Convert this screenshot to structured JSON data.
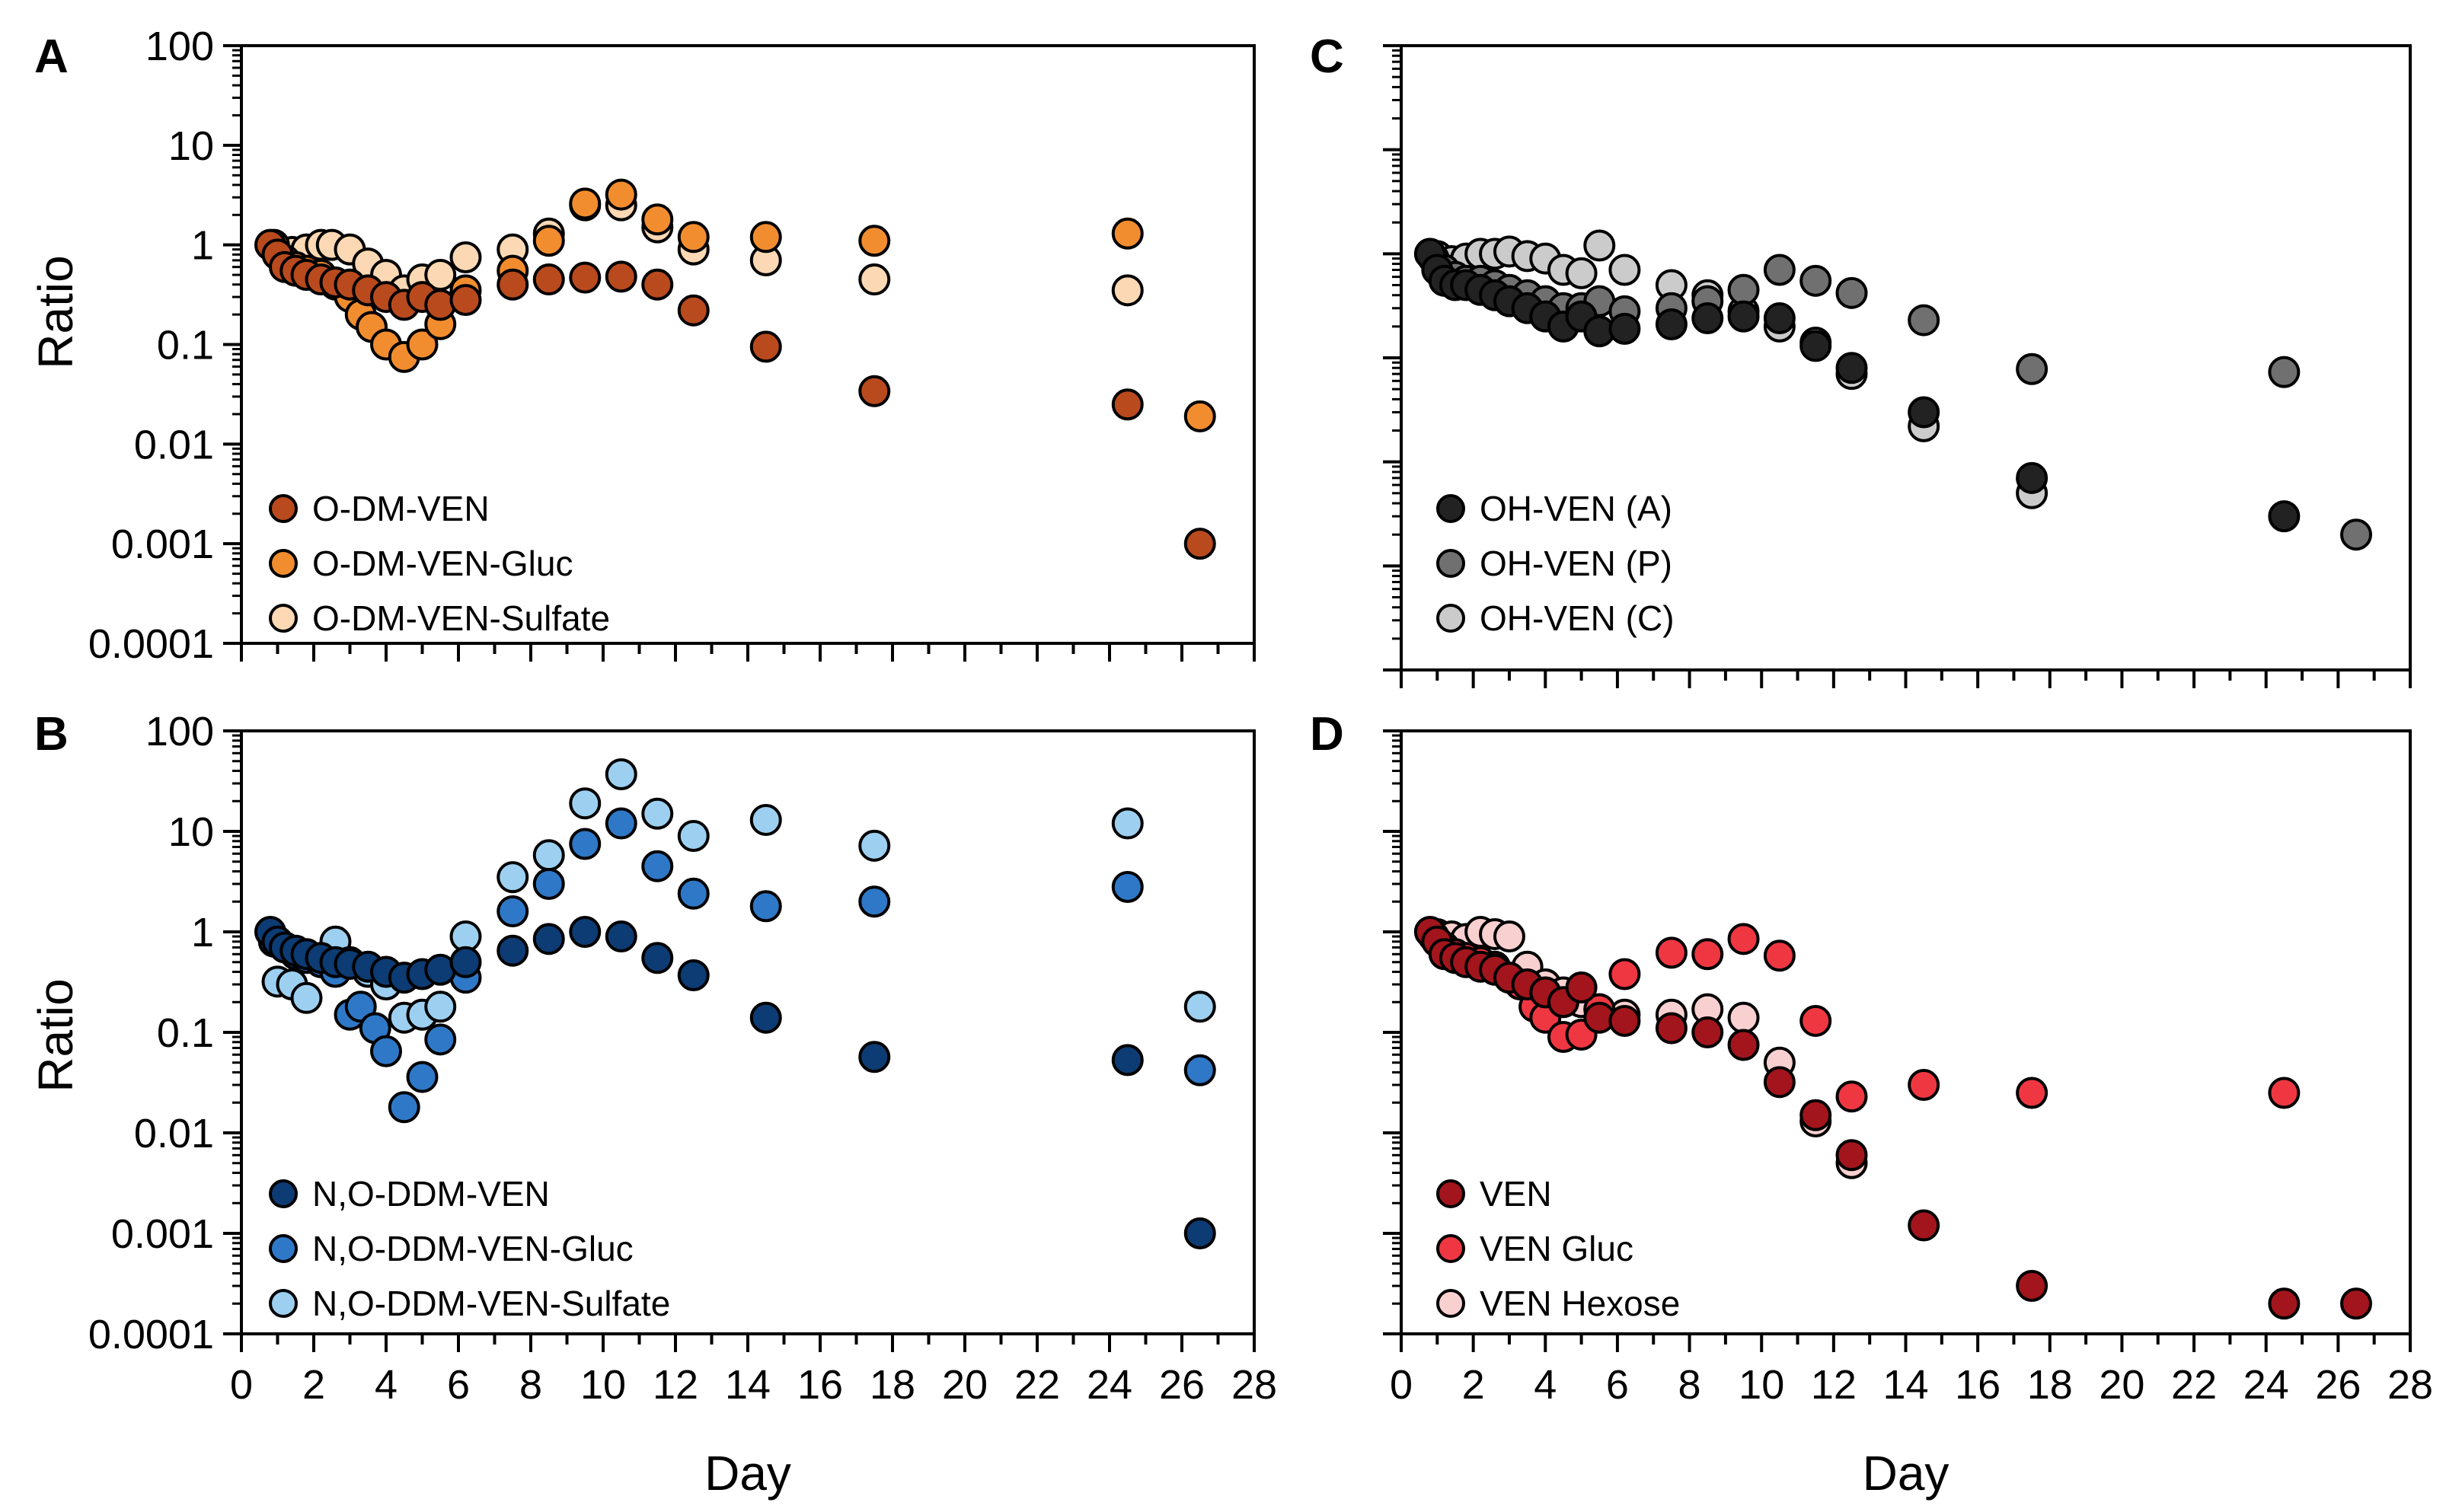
{
  "figure": {
    "x_axis_label": "Day",
    "y_axis_label": "Ratio"
  },
  "chart_data": [
    {
      "panel": "A",
      "type": "scatter",
      "yscale": "log",
      "xlim": [
        0,
        28
      ],
      "ylim": [
        0.0001,
        100
      ],
      "xticks": [
        "0",
        "2",
        "4",
        "6",
        "8",
        "10",
        "12",
        "14",
        "16",
        "18",
        "20",
        "22",
        "24",
        "26",
        "28"
      ],
      "yticks": [
        "0.0001",
        "0.001",
        "0.01",
        "0.1",
        "1",
        "10",
        "100"
      ],
      "xlabel": "",
      "ylabel": "Ratio",
      "series": [
        {
          "name": "O-DM-VEN",
          "color": "#B94A1E",
          "x": [
            0.8,
            1.0,
            1.2,
            1.5,
            1.8,
            2.2,
            2.6,
            3.0,
            3.5,
            4.0,
            4.5,
            5.0,
            5.5,
            6.2,
            7.5,
            8.5,
            9.5,
            10.5,
            11.5,
            12.5,
            14.5,
            17.5,
            24.5,
            26.5
          ],
          "y": [
            1.0,
            0.8,
            0.6,
            0.55,
            0.5,
            0.45,
            0.42,
            0.4,
            0.35,
            0.3,
            0.25,
            0.3,
            0.25,
            0.28,
            0.4,
            0.45,
            0.47,
            0.48,
            0.4,
            0.22,
            0.095,
            0.034,
            0.025,
            0.001
          ]
        },
        {
          "name": "O-DM-VEN-Gluc",
          "color": "#F28D2F",
          "x": [
            0.9,
            1.2,
            1.5,
            1.8,
            2.2,
            2.6,
            3.0,
            3.3,
            3.6,
            4.0,
            4.5,
            5.0,
            5.5,
            6.2,
            7.5,
            8.5,
            9.5,
            10.5,
            11.5,
            12.5,
            14.5,
            17.5,
            24.5,
            26.5
          ],
          "y": [
            1.0,
            0.7,
            0.6,
            0.55,
            0.5,
            0.4,
            0.3,
            0.2,
            0.15,
            0.1,
            0.075,
            0.1,
            0.16,
            0.35,
            0.55,
            1.1,
            2.6,
            3.2,
            1.8,
            1.2,
            1.2,
            1.1,
            1.3,
            0.019
          ]
        },
        {
          "name": "O-DM-VEN-Sulfate",
          "color": "#FCD8B4",
          "x": [
            1.0,
            1.4,
            1.8,
            2.2,
            2.5,
            3.0,
            3.5,
            4.0,
            4.5,
            5.0,
            5.5,
            6.2,
            7.5,
            8.5,
            9.5,
            10.5,
            11.5,
            12.5,
            14.5,
            17.5,
            24.5
          ],
          "y": [
            0.9,
            0.85,
            0.9,
            1.0,
            1.0,
            0.9,
            0.65,
            0.5,
            0.35,
            0.45,
            0.5,
            0.75,
            0.9,
            1.3,
            2.5,
            2.5,
            1.5,
            0.9,
            0.7,
            0.45,
            0.35
          ]
        }
      ]
    },
    {
      "panel": "B",
      "type": "scatter",
      "yscale": "log",
      "xlim": [
        0,
        28
      ],
      "ylim": [
        0.0001,
        100
      ],
      "xticks": [
        "0",
        "2",
        "4",
        "6",
        "8",
        "10",
        "12",
        "14",
        "16",
        "18",
        "20",
        "22",
        "24",
        "26",
        "28"
      ],
      "yticks": [
        "0.0001",
        "0.001",
        "0.01",
        "0.1",
        "1",
        "10",
        "100"
      ],
      "xlabel": "Day",
      "ylabel": "Ratio",
      "series": [
        {
          "name": "N,O-DDM-VEN",
          "color": "#0D3B73",
          "x": [
            0.8,
            1.0,
            1.2,
            1.5,
            1.8,
            2.2,
            2.6,
            3.0,
            3.5,
            4.0,
            4.5,
            5.0,
            5.5,
            6.2,
            7.5,
            8.5,
            9.5,
            10.5,
            11.5,
            12.5,
            14.5,
            17.5,
            24.5,
            26.5
          ],
          "y": [
            1.0,
            0.8,
            0.7,
            0.65,
            0.6,
            0.55,
            0.5,
            0.48,
            0.45,
            0.4,
            0.35,
            0.38,
            0.42,
            0.5,
            0.65,
            0.85,
            1.0,
            0.9,
            0.55,
            0.37,
            0.14,
            0.057,
            0.053,
            0.001
          ]
        },
        {
          "name": "N,O-DDM-VEN-Gluc",
          "color": "#2E78C7",
          "x": [
            0.9,
            1.2,
            1.5,
            1.8,
            2.2,
            2.6,
            3.0,
            3.3,
            3.7,
            4.0,
            4.5,
            5.0,
            5.5,
            6.2,
            7.5,
            8.5,
            9.5,
            10.5,
            11.5,
            12.5,
            14.5,
            17.5,
            24.5,
            26.5
          ],
          "y": [
            0.8,
            0.7,
            0.6,
            0.55,
            0.5,
            0.4,
            0.15,
            0.18,
            0.11,
            0.065,
            0.018,
            0.036,
            0.085,
            0.35,
            1.6,
            3.0,
            7.5,
            12,
            4.5,
            2.4,
            1.8,
            2.0,
            2.8,
            0.042
          ]
        },
        {
          "name": "N,O-DDM-VEN-Sulfate",
          "color": "#9DD0F0",
          "x": [
            1.0,
            1.4,
            1.8,
            2.2,
            2.6,
            3.0,
            3.5,
            4.0,
            4.5,
            5.0,
            5.5,
            6.2,
            7.5,
            8.5,
            9.5,
            10.5,
            11.5,
            12.5,
            14.5,
            17.5,
            24.5,
            26.5
          ],
          "y": [
            0.32,
            0.3,
            0.22,
            0.5,
            0.8,
            0.5,
            0.4,
            0.3,
            0.14,
            0.15,
            0.18,
            0.9,
            3.5,
            5.8,
            19,
            37,
            15,
            9,
            13,
            7.2,
            12,
            0.18
          ]
        }
      ]
    },
    {
      "panel": "C",
      "type": "scatter",
      "yscale": "log",
      "xlim": [
        0,
        28
      ],
      "ylim": [
        0.0001,
        100
      ],
      "xticks": [
        "0",
        "2",
        "4",
        "6",
        "8",
        "10",
        "12",
        "14",
        "16",
        "18",
        "20",
        "22",
        "24",
        "26",
        "28"
      ],
      "yticks": [],
      "xlabel": "",
      "ylabel": "",
      "series": [
        {
          "name": "OH-VEN (A)",
          "color": "#222222",
          "x": [
            0.8,
            1.0,
            1.2,
            1.5,
            1.8,
            2.2,
            2.6,
            3.0,
            3.5,
            4.0,
            4.5,
            5.0,
            5.5,
            6.2,
            7.5,
            8.5,
            9.5,
            10.5,
            11.5,
            12.5,
            14.5,
            17.5,
            24.5
          ],
          "y": [
            1.0,
            0.7,
            0.55,
            0.5,
            0.5,
            0.45,
            0.4,
            0.35,
            0.3,
            0.25,
            0.2,
            0.25,
            0.18,
            0.19,
            0.21,
            0.24,
            0.25,
            0.24,
            0.13,
            0.08,
            0.03,
            0.007,
            0.003
          ]
        },
        {
          "name": "OH-VEN (P)",
          "color": "#707070",
          "x": [
            0.9,
            1.2,
            1.5,
            1.8,
            2.2,
            2.6,
            3.0,
            3.5,
            4.0,
            4.5,
            5.0,
            5.5,
            6.2,
            7.5,
            8.5,
            9.5,
            10.5,
            11.5,
            12.5,
            14.5,
            17.5,
            24.5,
            26.5
          ],
          "y": [
            0.9,
            0.7,
            0.6,
            0.55,
            0.55,
            0.5,
            0.45,
            0.4,
            0.35,
            0.3,
            0.3,
            0.35,
            0.28,
            0.3,
            0.35,
            0.45,
            0.7,
            0.55,
            0.42,
            0.23,
            0.078,
            0.073,
            0.002
          ]
        },
        {
          "name": "OH-VEN (C)",
          "color": "#CBCBCB",
          "x": [
            1.0,
            1.4,
            1.8,
            2.2,
            2.6,
            3.0,
            3.5,
            4.0,
            4.5,
            5.0,
            5.5,
            6.2,
            7.5,
            8.5,
            9.5,
            10.5,
            11.5,
            12.5,
            14.5,
            17.5
          ],
          "y": [
            0.95,
            0.85,
            0.9,
            1.0,
            1.0,
            1.05,
            0.95,
            0.9,
            0.7,
            0.65,
            1.2,
            0.7,
            0.5,
            0.4,
            0.28,
            0.2,
            0.14,
            0.07,
            0.022,
            0.005
          ]
        }
      ]
    },
    {
      "panel": "D",
      "type": "scatter",
      "yscale": "log",
      "xlim": [
        0,
        28
      ],
      "ylim": [
        0.0001,
        100
      ],
      "xticks": [
        "0",
        "2",
        "4",
        "6",
        "8",
        "10",
        "12",
        "14",
        "16",
        "18",
        "20",
        "22",
        "24",
        "26",
        "28"
      ],
      "yticks": [],
      "xlabel": "Day",
      "ylabel": "",
      "series": [
        {
          "name": "VEN",
          "color": "#A3151C",
          "x": [
            0.8,
            1.0,
            1.2,
            1.5,
            1.8,
            2.2,
            2.6,
            3.0,
            3.5,
            4.0,
            4.5,
            5.0,
            5.5,
            6.2,
            7.5,
            8.5,
            9.5,
            10.5,
            11.5,
            12.5,
            14.5,
            17.5,
            24.5,
            26.5
          ],
          "y": [
            1.0,
            0.8,
            0.6,
            0.55,
            0.5,
            0.45,
            0.42,
            0.35,
            0.3,
            0.25,
            0.2,
            0.28,
            0.14,
            0.13,
            0.11,
            0.1,
            0.075,
            0.032,
            0.015,
            0.006,
            0.0012,
            0.0003,
            0.0002,
            0.0002
          ]
        },
        {
          "name": "VEN Gluc",
          "color": "#EF3742",
          "x": [
            0.9,
            1.2,
            1.5,
            1.8,
            2.2,
            2.6,
            3.0,
            3.3,
            3.7,
            4.0,
            4.5,
            5.0,
            5.5,
            6.2,
            7.5,
            8.5,
            9.5,
            10.5,
            11.5,
            12.5,
            14.5,
            17.5,
            24.5
          ],
          "y": [
            0.9,
            0.7,
            0.6,
            0.55,
            0.5,
            0.45,
            0.35,
            0.3,
            0.18,
            0.14,
            0.09,
            0.095,
            0.17,
            0.38,
            0.62,
            0.6,
            0.85,
            0.58,
            0.13,
            0.023,
            0.03,
            0.025,
            0.025
          ]
        },
        {
          "name": "VEN Hexose",
          "color": "#F9D0D0",
          "x": [
            1.0,
            1.4,
            1.8,
            2.2,
            2.6,
            3.0,
            3.5,
            4.0,
            4.5,
            5.0,
            5.5,
            6.2,
            7.5,
            8.5,
            9.5,
            10.5,
            11.5,
            12.5
          ],
          "y": [
            0.95,
            0.9,
            0.85,
            1.0,
            0.95,
            0.9,
            0.45,
            0.3,
            0.25,
            0.2,
            0.17,
            0.15,
            0.15,
            0.17,
            0.14,
            0.05,
            0.013,
            0.005
          ]
        }
      ]
    }
  ]
}
